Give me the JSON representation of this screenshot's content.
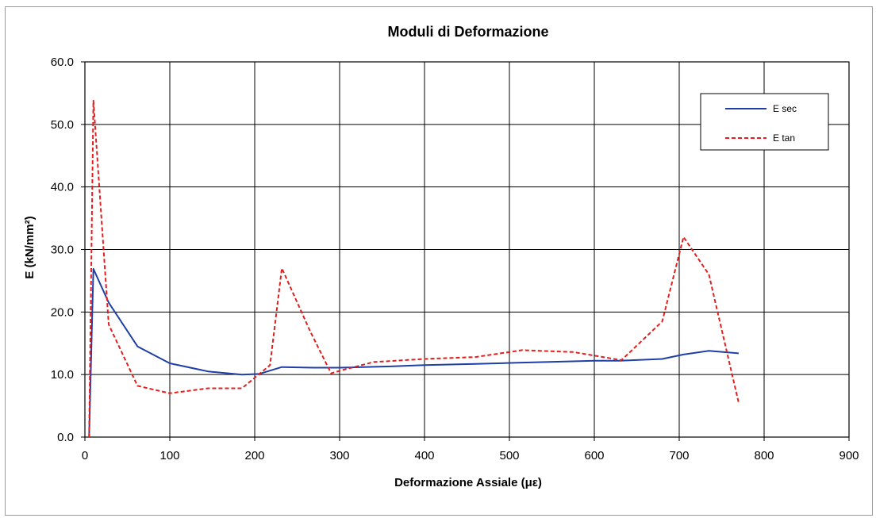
{
  "chart_data": {
    "type": "line",
    "title": "Moduli di Deformazione",
    "xlabel": "Deformazione Assiale (με)",
    "ylabel": "E (kN/mm²)",
    "xlim": [
      0,
      900
    ],
    "ylim": [
      0,
      60
    ],
    "xticks": [
      "0",
      "100",
      "200",
      "300",
      "400",
      "500",
      "600",
      "700",
      "800",
      "900"
    ],
    "yticks": [
      "0.0",
      "10.0",
      "20.0",
      "30.0",
      "40.0",
      "50.0",
      "60.0"
    ],
    "grid": true,
    "legend_position": "top-right",
    "series": [
      {
        "name": "E sec",
        "color": "#1f3fa8",
        "style": "solid",
        "x": [
          5,
          10,
          28,
          62,
          100,
          145,
          185,
          205,
          232,
          270,
          300,
          360,
          400,
          460,
          510,
          570,
          600,
          630,
          680,
          705,
          735,
          770
        ],
        "y": [
          0,
          26.9,
          21.5,
          14.5,
          11.8,
          10.5,
          10.0,
          10.1,
          11.2,
          11.1,
          11.1,
          11.3,
          11.5,
          11.7,
          11.9,
          12.1,
          12.2,
          12.2,
          12.5,
          13.2,
          13.8,
          13.4
        ]
      },
      {
        "name": "E tan",
        "color": "#e02020",
        "style": "dashed",
        "x": [
          5,
          10,
          28,
          62,
          100,
          145,
          185,
          218,
          232,
          265,
          290,
          300,
          340,
          400,
          460,
          515,
          575,
          632,
          680,
          705,
          735,
          770
        ],
        "y": [
          0,
          53.8,
          18.0,
          8.2,
          7.0,
          7.8,
          7.8,
          11.5,
          27.0,
          17.0,
          10.2,
          10.6,
          12.0,
          12.5,
          12.8,
          13.9,
          13.6,
          12.3,
          18.5,
          32.0,
          26.0,
          5.5
        ]
      }
    ]
  }
}
